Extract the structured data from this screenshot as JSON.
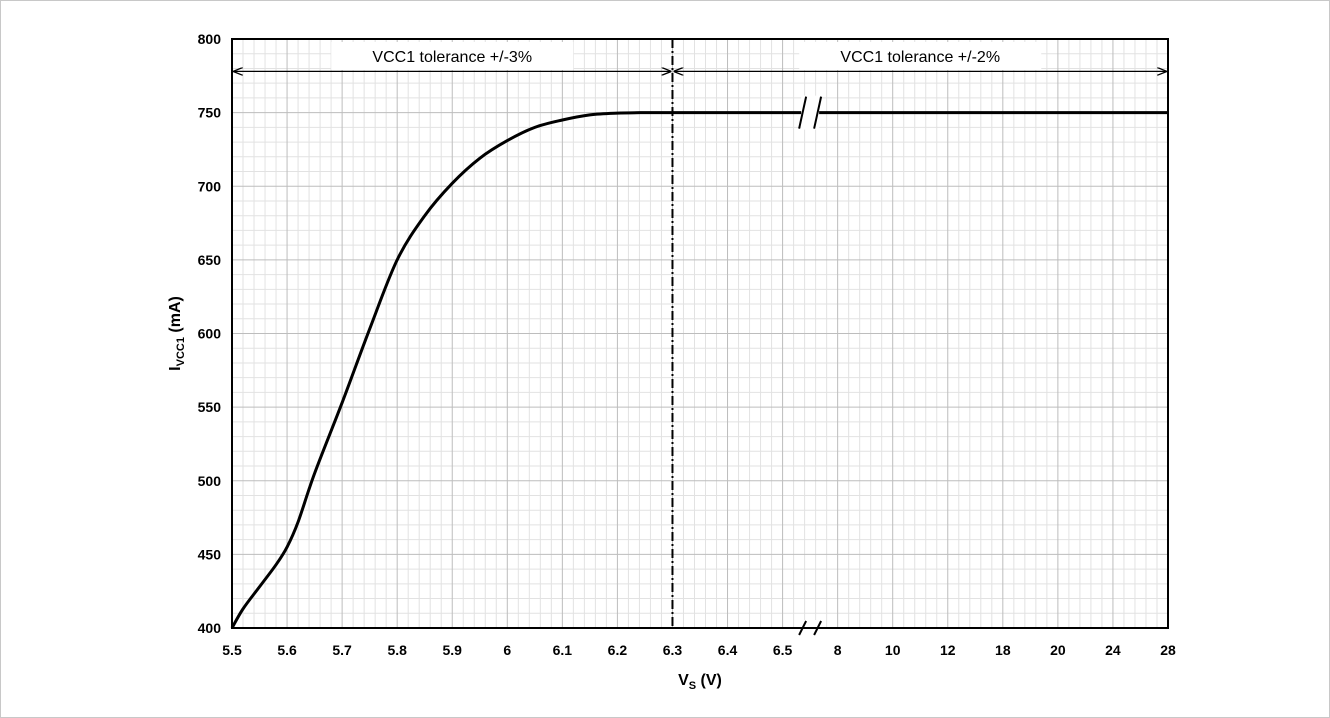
{
  "chart_data": {
    "type": "line",
    "title": "",
    "xlabel": {
      "main": "V",
      "sub": "S",
      "unit": " (V)"
    },
    "ylabel": {
      "main": "I",
      "sub": "VCC1",
      "unit": " (mA)"
    },
    "x_ticks": [
      "5.5",
      "5.6",
      "5.7",
      "5.8",
      "5.9",
      "6",
      "6.1",
      "6.2",
      "6.3",
      "6.4",
      "6.5",
      "8",
      "10",
      "12",
      "18",
      "20",
      "24",
      "28"
    ],
    "y_ticks": [
      400,
      450,
      500,
      550,
      600,
      650,
      700,
      750,
      800
    ],
    "ylim": [
      400,
      800
    ],
    "grid": true,
    "axis_break": {
      "between": [
        "6.5",
        "8"
      ]
    },
    "series": [
      {
        "name": "",
        "x": [
          "5.5",
          "5.52",
          "5.55",
          "5.58",
          "5.6",
          "5.62",
          "5.65",
          "5.7",
          "5.75",
          "5.8",
          "5.85",
          "5.9",
          "5.95",
          "6",
          "6.05",
          "6.1",
          "6.15",
          "6.2",
          "6.25",
          "6.3",
          "6.5",
          "8",
          "10",
          "12",
          "18",
          "20",
          "24",
          "28"
        ],
        "y": [
          400,
          413,
          428,
          443,
          455,
          472,
          505,
          553,
          603,
          650,
          680,
          702,
          719,
          731,
          740,
          745,
          748.5,
          749.7,
          750,
          750,
          750,
          750,
          750,
          750,
          750,
          750,
          750,
          750
        ]
      }
    ],
    "regions": [
      {
        "label": "VCC1 tolerance +/-3%",
        "from": "5.5",
        "to": "6.3"
      },
      {
        "label": "VCC1 tolerance +/-2%",
        "from": "6.3",
        "to": "28"
      }
    ],
    "vline": {
      "x": "6.3",
      "style": "dash-dot"
    }
  }
}
